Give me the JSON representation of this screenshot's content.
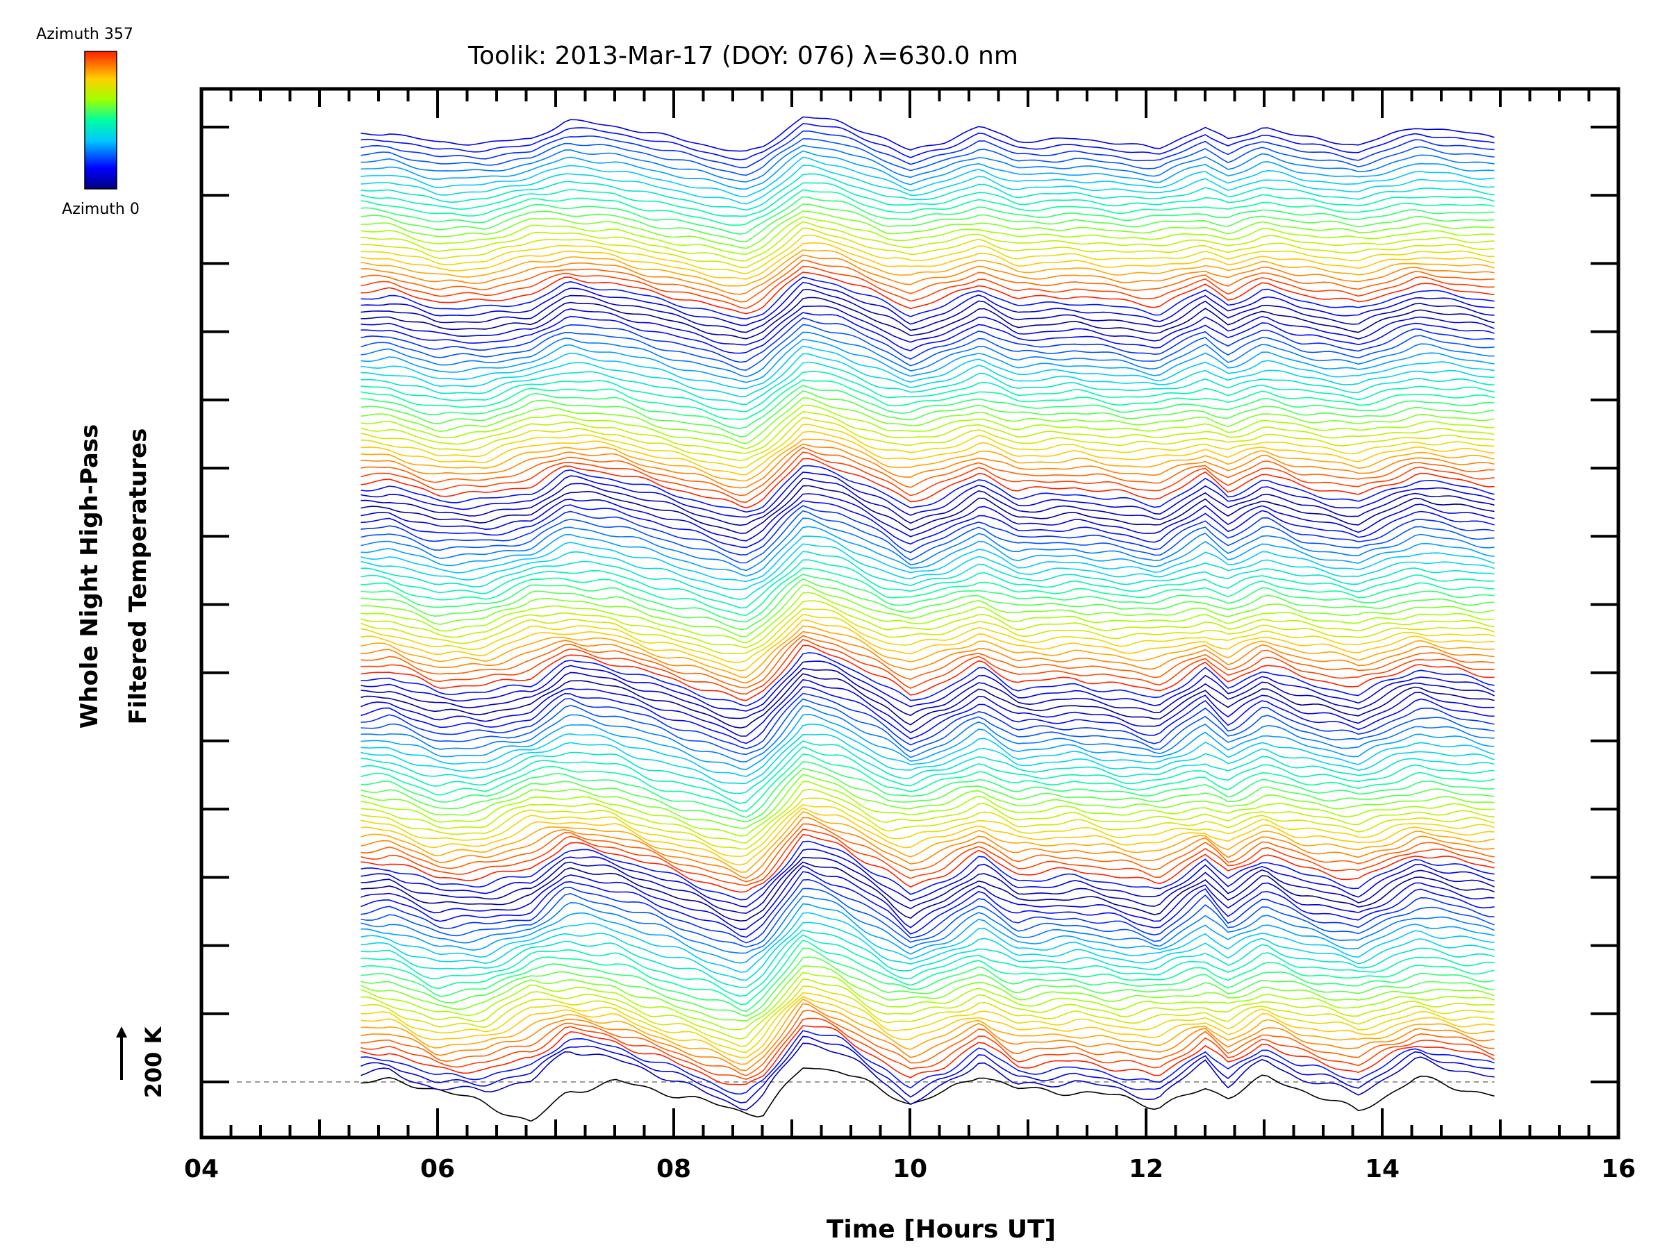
{
  "chart_data": {
    "type": "line",
    "title": "Toolik: 2013-Mar-17 (DOY: 076) λ=630.0 nm",
    "xlabel": "Time [Hours UT]",
    "ylabel_line1": "Whole Night High-Pass",
    "ylabel_line2": "Filtered Temperatures",
    "scale_bar_label": "200 K",
    "xlim": [
      4,
      16
    ],
    "x_ticks": [
      "04",
      "06",
      "08",
      "10",
      "12",
      "14",
      "16"
    ],
    "x_range_data": [
      5.35,
      14.95
    ],
    "y_major_tick_count": 15,
    "colorbar": {
      "top_label": "Azimuth 357",
      "bottom_label": "Azimuth 0",
      "colormap": "rainbow"
    },
    "baseline_style": "dashed gray",
    "series_note_count": 140,
    "anchors_x": [
      5.35,
      5.6,
      6.0,
      6.4,
      6.8,
      7.1,
      7.5,
      7.8,
      8.2,
      8.6,
      8.75,
      9.1,
      9.4,
      9.8,
      10.0,
      10.3,
      10.6,
      10.9,
      11.4,
      11.8,
      12.1,
      12.5,
      12.7,
      13.0,
      13.3,
      13.8,
      14.3,
      14.95
    ],
    "baseline_values_K": [
      0,
      0,
      -20,
      -60,
      -110,
      -30,
      0,
      -20,
      -50,
      -80,
      -90,
      40,
      30,
      -30,
      -60,
      -30,
      20,
      -20,
      -30,
      -40,
      -70,
      -20,
      -40,
      10,
      -20,
      -80,
      10,
      -40
    ],
    "crest_values_K": [
      0,
      10,
      -40,
      -40,
      -20,
      70,
      40,
      10,
      -40,
      -90,
      -60,
      90,
      60,
      -20,
      -80,
      -30,
      40,
      -30,
      -20,
      -40,
      -70,
      40,
      -30,
      40,
      -10,
      -50,
      40,
      -10
    ],
    "trough_values_K": [
      0,
      -10,
      -60,
      -50,
      20,
      10,
      0,
      -40,
      -70,
      -110,
      -70,
      60,
      30,
      -40,
      -40,
      -20,
      10,
      -30,
      -20,
      -40,
      -30,
      -20,
      -40,
      0,
      -20,
      -40,
      -10,
      -20
    ],
    "colors": {
      "axis": "#000000",
      "baseline": "#999999",
      "background": "#ffffff"
    }
  }
}
